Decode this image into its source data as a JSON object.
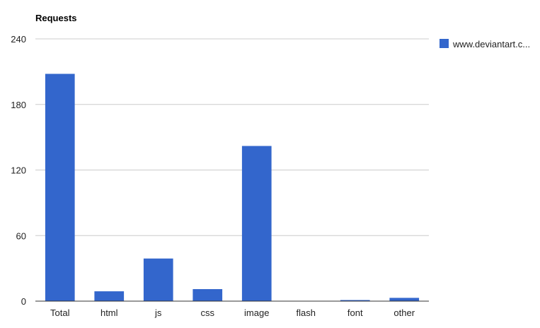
{
  "chart_data": {
    "type": "bar",
    "title": "Requests",
    "categories": [
      "Total",
      "html",
      "js",
      "css",
      "image",
      "flash",
      "font",
      "other"
    ],
    "series": [
      {
        "name": "www.deviantart.c...",
        "color": "#3366cc",
        "values": [
          208,
          9,
          39,
          11,
          142,
          0,
          1,
          3
        ]
      }
    ],
    "ylim": [
      0,
      240
    ],
    "yticks": [
      0,
      60,
      120,
      180,
      240
    ],
    "grid": true,
    "legend": "right"
  }
}
